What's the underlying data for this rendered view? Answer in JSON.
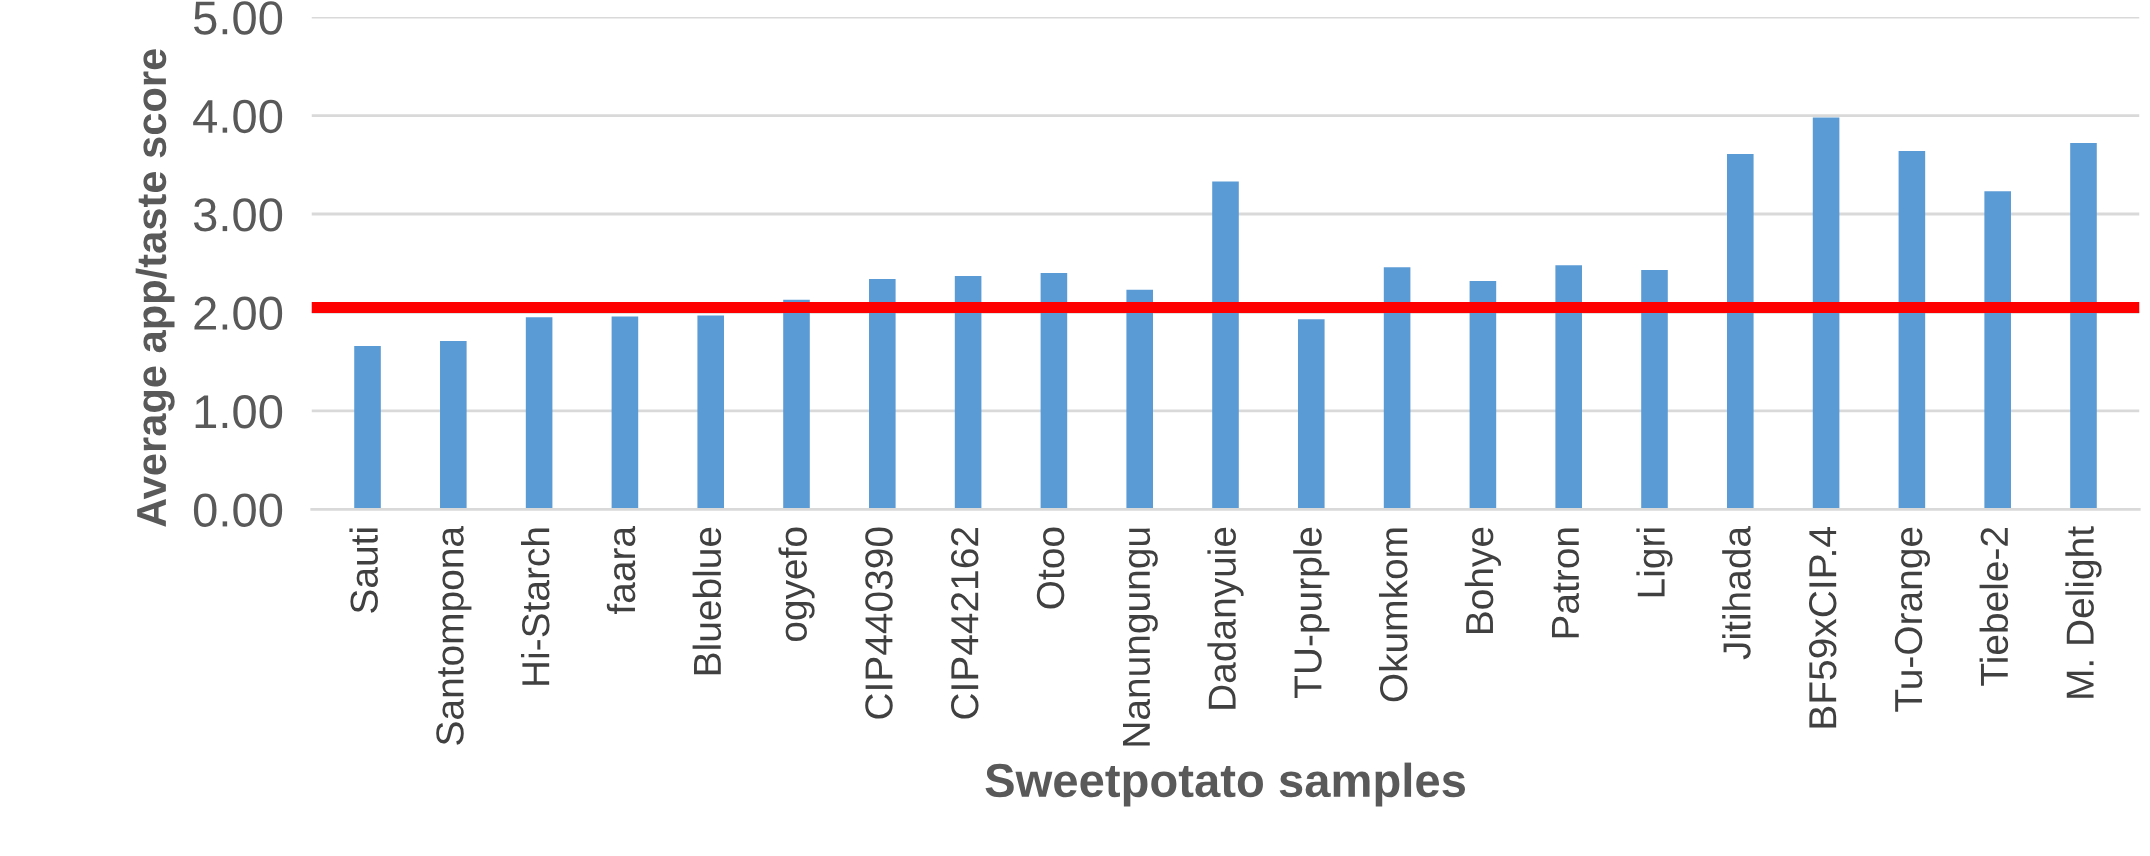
{
  "chart_data": {
    "type": "bar",
    "xlabel": "Sweetpotato samples",
    "ylabel": "Average app/taste score",
    "categories": [
      "Sauti",
      "Santompona",
      "Hi-Starch",
      "faara",
      "Blueblue",
      "ogyefo",
      "CIP440390",
      "CIP442162",
      "Otoo",
      "Nanungungu",
      "Dadanyuie",
      "TU-purple",
      "Okumkom",
      "Bohye",
      "Patron",
      "Ligri",
      "Jitihada",
      "BF59xCIP.4",
      "Tu-Orange",
      "Tiebele-2",
      "M. Delight"
    ],
    "values": [
      1.66,
      1.71,
      1.95,
      1.96,
      1.97,
      2.13,
      2.34,
      2.37,
      2.4,
      2.23,
      3.33,
      1.93,
      2.46,
      2.32,
      2.48,
      2.43,
      3.61,
      3.98,
      3.64,
      3.23,
      3.72
    ],
    "color": "#5b9bd5",
    "ylim": [
      0,
      5
    ],
    "yticks": [
      {
        "value": 0,
        "label": "0.00"
      },
      {
        "value": 1,
        "label": "1.00"
      },
      {
        "value": 2,
        "label": "2.00"
      },
      {
        "value": 3,
        "label": "3.00"
      },
      {
        "value": 4,
        "label": "4.00"
      },
      {
        "value": 5,
        "label": "5.00"
      }
    ],
    "grid": "y",
    "ref_lines": [
      {
        "axis": "y",
        "value": 2.05,
        "label": null,
        "color": "#ff0000"
      }
    ]
  }
}
